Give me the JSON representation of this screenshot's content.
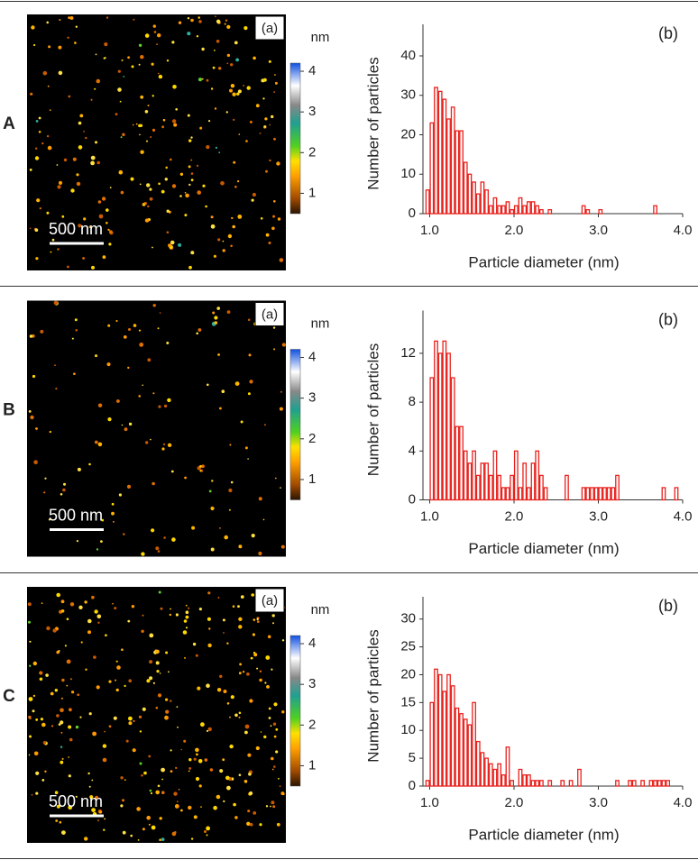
{
  "rows": [
    {
      "label": "A",
      "image": {
        "tag": "(a)",
        "unit": "nm",
        "scale_bar": "500 nm",
        "colorbar_ticks": [
          1,
          2,
          3,
          4
        ],
        "colorbar_lim": [
          0.5,
          4.2
        ]
      }
    },
    {
      "label": "B",
      "image": {
        "tag": "(a)",
        "unit": "nm",
        "scale_bar": "500 nm",
        "colorbar_ticks": [
          1,
          2,
          3,
          4
        ],
        "colorbar_lim": [
          0.5,
          4.2
        ]
      }
    },
    {
      "label": "C",
      "image": {
        "tag": "(a)",
        "unit": "nm",
        "scale_bar": "500 nm",
        "colorbar_ticks": [
          1,
          2,
          3,
          4
        ],
        "colorbar_lim": [
          0.5,
          4.2
        ]
      }
    }
  ],
  "chart_data": [
    {
      "type": "histogram",
      "annotation": "(b)",
      "x_label": "Particle diameter (nm)",
      "y_label": "Number of particles",
      "color": "#e8211c",
      "bins": [
        0.95,
        1,
        1.05,
        1.1,
        1.15,
        1.2,
        1.25,
        1.3,
        1.35,
        1.4,
        1.45,
        1.5,
        1.55,
        1.6,
        1.65,
        1.7,
        1.75,
        1.8,
        1.85,
        1.9,
        1.95,
        2,
        2.05,
        2.1,
        2.15,
        2.2,
        2.25,
        2.3,
        2.35,
        2.4,
        2.45,
        2.5,
        2.55,
        2.6,
        2.65,
        2.7,
        2.75,
        2.8,
        2.85,
        2.9,
        2.95,
        3,
        3.05,
        3.1,
        3.15,
        3.2,
        3.25,
        3.3,
        3.35,
        3.4,
        3.45,
        3.5,
        3.55,
        3.6,
        3.65,
        3.7,
        3.75,
        3.8,
        3.85,
        3.9,
        3.95
      ],
      "values": [
        6,
        23,
        32,
        31,
        29,
        24,
        27,
        21,
        21,
        13,
        10,
        8,
        5,
        8,
        6,
        2,
        4,
        2,
        2,
        3,
        1,
        2,
        4,
        2,
        3,
        3,
        2,
        1,
        0,
        1,
        0,
        0,
        0,
        0,
        0,
        0,
        0,
        2,
        1,
        0,
        0,
        1,
        0,
        0,
        0,
        0,
        0,
        0,
        0,
        0,
        0,
        0,
        0,
        0,
        2,
        0,
        0,
        0,
        0,
        0
      ],
      "xlim": [
        0.92,
        4.0
      ],
      "xticks": [
        {
          "value": 1,
          "label": "1.0"
        },
        {
          "value": 2,
          "label": "2.0"
        },
        {
          "value": 3,
          "label": "3.0"
        },
        {
          "value": 4,
          "label": "4.0"
        }
      ],
      "ylim": [
        0,
        48
      ],
      "yticks": [
        0,
        10,
        20,
        30,
        40
      ]
    },
    {
      "type": "histogram",
      "annotation": "(b)",
      "x_label": "Particle diameter (nm)",
      "y_label": "Number of particles",
      "color": "#e8211c",
      "bins": [
        0.95,
        1,
        1.05,
        1.1,
        1.15,
        1.2,
        1.25,
        1.3,
        1.35,
        1.4,
        1.45,
        1.5,
        1.55,
        1.6,
        1.65,
        1.7,
        1.75,
        1.8,
        1.85,
        1.9,
        1.95,
        2,
        2.05,
        2.1,
        2.15,
        2.2,
        2.25,
        2.3,
        2.35,
        2.4,
        2.45,
        2.5,
        2.55,
        2.6,
        2.65,
        2.7,
        2.75,
        2.8,
        2.85,
        2.9,
        2.95,
        3,
        3.05,
        3.1,
        3.15,
        3.2,
        3.25,
        3.3,
        3.35,
        3.4,
        3.45,
        3.5,
        3.55,
        3.6,
        3.65,
        3.7,
        3.75,
        3.8,
        3.85,
        3.9,
        3.95
      ],
      "values": [
        0,
        10,
        13,
        12,
        13,
        12,
        10,
        6,
        6,
        4,
        3,
        4,
        2,
        3,
        3,
        2,
        4,
        2,
        1,
        1,
        2,
        4,
        1,
        3,
        1,
        3,
        4,
        2,
        1,
        0,
        0,
        0,
        0,
        2,
        0,
        0,
        0,
        1,
        1,
        1,
        1,
        1,
        1,
        1,
        1,
        2,
        0,
        0,
        0,
        0,
        0,
        0,
        0,
        0,
        0,
        0,
        1,
        0,
        0,
        1
      ],
      "xlim": [
        0.92,
        4.0
      ],
      "xticks": [
        {
          "value": 1,
          "label": "1.0"
        },
        {
          "value": 2,
          "label": "2.0"
        },
        {
          "value": 3,
          "label": "3.0"
        },
        {
          "value": 4,
          "label": "4.0"
        }
      ],
      "ylim": [
        0,
        15.5
      ],
      "yticks": [
        0,
        4,
        8,
        12
      ]
    },
    {
      "type": "histogram",
      "annotation": "(b)",
      "x_label": "Particle diameter (nm)",
      "y_label": "Number of particles",
      "color": "#e8211c",
      "bins": [
        0.95,
        1,
        1.05,
        1.1,
        1.15,
        1.2,
        1.25,
        1.3,
        1.35,
        1.4,
        1.45,
        1.5,
        1.55,
        1.6,
        1.65,
        1.7,
        1.75,
        1.8,
        1.85,
        1.9,
        1.95,
        2,
        2.05,
        2.1,
        2.15,
        2.2,
        2.25,
        2.3,
        2.35,
        2.4,
        2.45,
        2.5,
        2.55,
        2.6,
        2.65,
        2.7,
        2.75,
        2.8,
        2.85,
        2.9,
        2.95,
        3,
        3.05,
        3.1,
        3.15,
        3.2,
        3.25,
        3.3,
        3.35,
        3.4,
        3.45,
        3.5,
        3.55,
        3.6,
        3.65,
        3.7,
        3.75,
        3.8,
        3.85,
        3.9,
        3.95
      ],
      "values": [
        1,
        15,
        21,
        20,
        17,
        20,
        18,
        14,
        13,
        12,
        11,
        15,
        8,
        6,
        5,
        4,
        3,
        4,
        2,
        7,
        1,
        0,
        3,
        2,
        2,
        1,
        1,
        1,
        0,
        1,
        0,
        0,
        1,
        0,
        1,
        0,
        3,
        0,
        0,
        0,
        0,
        0,
        0,
        0,
        0,
        1,
        0,
        0,
        1,
        1,
        0,
        1,
        0,
        1,
        1,
        1,
        1,
        1,
        0,
        0
      ],
      "xlim": [
        0.92,
        4.0
      ],
      "xticks": [
        {
          "value": 1,
          "label": "1.0"
        },
        {
          "value": 2,
          "label": "2.0"
        },
        {
          "value": 3,
          "label": "3.0"
        },
        {
          "value": 4,
          "label": "4.0"
        }
      ],
      "ylim": [
        0,
        34
      ],
      "yticks": [
        0,
        5,
        10,
        15,
        20,
        25,
        30
      ]
    }
  ]
}
